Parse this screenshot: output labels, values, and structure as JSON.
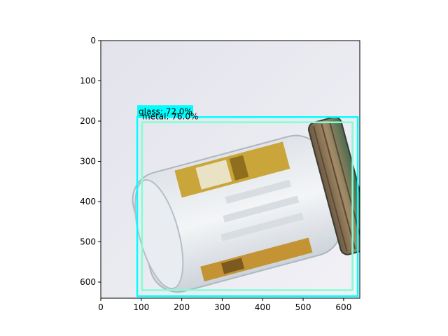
{
  "axes": {
    "x_ticks": [
      "0",
      "100",
      "200",
      "300",
      "400",
      "500",
      "600"
    ],
    "y_ticks": [
      "0",
      "100",
      "200",
      "300",
      "400",
      "500",
      "600"
    ],
    "x_range": [
      0,
      640
    ],
    "y_range": [
      640,
      0
    ],
    "y_inverted": true
  },
  "detections": [
    {
      "label": "glass: 72.0%",
      "class": "glass",
      "score": 72.0,
      "box": {
        "x1": 90,
        "y1": 190,
        "x2": 635,
        "y2": 635
      },
      "color": "#00ffff",
      "label_background": "#00ffff"
    },
    {
      "label": "metal: 76.0%",
      "class": "metal",
      "score": 76.0,
      "box": {
        "x1": 102,
        "y1": 203,
        "x2": 622,
        "y2": 620
      },
      "color": "#7fffd4",
      "label_background": "none"
    }
  ],
  "photo": {
    "subject": "glass-jar",
    "background_color": "#e7e7ef"
  }
}
